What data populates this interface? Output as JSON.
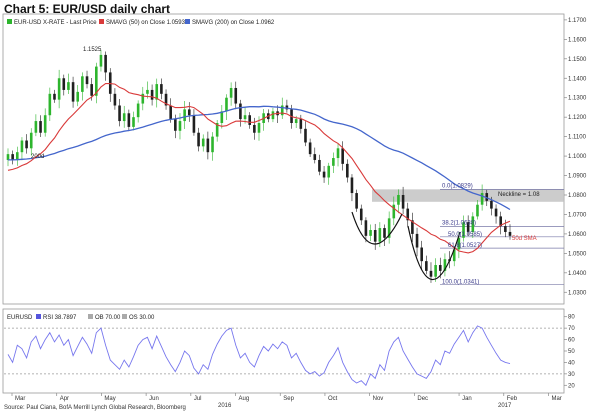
{
  "title": "Chart 5: EUR/USD daily chart",
  "source": "Source: Paul Ciana, BofA Merrill Lynch Global Research, Bloomberg",
  "colors": {
    "up": "#2db52d",
    "down": "#1f1f1f",
    "sma50": "#d93a3a",
    "sma200": "#4466cc",
    "rsi": "#7777ee",
    "neckline_band": "#bfbfbf"
  },
  "chart_data": [
    {
      "type": "candlestick",
      "legend": [
        {
          "label": "EUR-USD X-RATE - Last Price",
          "color": "#2db52d"
        },
        {
          "label": "SMAVG (50) on Close 1.0593",
          "color": "#d93a3a"
        },
        {
          "label": "SMAVG (200) on Close 1.0962",
          "color": "#4466cc"
        }
      ],
      "x_ticks": [
        "Mar",
        "Apr",
        "May",
        "Jun",
        "Jul",
        "Aug",
        "Sep",
        "Oct",
        "Nov",
        "Dec",
        "Jan",
        "Feb",
        "Mar"
      ],
      "year_labels": [
        "2016",
        "2017"
      ],
      "y_ticks": [
        "1.1700",
        "1.1600",
        "1.1500",
        "1.1400",
        "1.1300",
        "1.1200",
        "1.1100",
        "1.1000",
        "1.0900",
        "1.0800",
        "1.0700",
        "1.0600",
        "1.0500",
        "1.0400",
        "1.0300"
      ],
      "ylim": [
        1.025,
        1.172
      ],
      "closes": [
        1.101,
        1.098,
        1.102,
        1.108,
        1.104,
        1.112,
        1.118,
        1.112,
        1.121,
        1.132,
        1.129,
        1.14,
        1.134,
        1.138,
        1.128,
        1.133,
        1.141,
        1.137,
        1.131,
        1.146,
        1.152,
        1.143,
        1.132,
        1.126,
        1.118,
        1.122,
        1.115,
        1.12,
        1.127,
        1.132,
        1.134,
        1.129,
        1.137,
        1.132,
        1.126,
        1.119,
        1.113,
        1.118,
        1.124,
        1.121,
        1.112,
        1.105,
        1.109,
        1.102,
        1.11,
        1.117,
        1.123,
        1.13,
        1.135,
        1.127,
        1.119,
        1.121,
        1.116,
        1.112,
        1.117,
        1.122,
        1.119,
        1.123,
        1.121,
        1.126,
        1.124,
        1.117,
        1.119,
        1.114,
        1.107,
        1.101,
        1.098,
        1.092,
        1.089,
        1.095,
        1.099,
        1.104,
        1.096,
        1.089,
        1.081,
        1.073,
        1.067,
        1.059,
        1.062,
        1.056,
        1.063,
        1.058,
        1.068,
        1.075,
        1.08,
        1.073,
        1.067,
        1.06,
        1.053,
        1.046,
        1.041,
        1.038,
        1.044,
        1.041,
        1.047,
        1.046,
        1.052,
        1.058,
        1.066,
        1.061,
        1.069,
        1.075,
        1.081,
        1.077,
        1.073,
        1.069,
        1.064,
        1.061,
        1.059
      ],
      "labels": [
        {
          "text": "1.1525",
          "value": 1.1525
        },
        {
          "text": "200d"
        },
        {
          "text": "0.0(1.0829)",
          "value": 1.0829
        },
        {
          "text": "Neckline = 1.08",
          "value": 1.08
        },
        {
          "text": "38.2(1.0638)",
          "value": 1.0638
        },
        {
          "text": "50.0(1.0585)",
          "value": 1.0585
        },
        {
          "text": "61.8(1.0527)",
          "value": 1.0527
        },
        {
          "text": "50d SMA"
        },
        {
          "text": "100.0(1.0341)",
          "value": 1.0341
        }
      ]
    },
    {
      "type": "line",
      "legend": [
        {
          "label": "EURUSD"
        },
        {
          "label": "RSI 38.7897",
          "color": "#5555dd"
        },
        {
          "label": "OB 70.00",
          "color": "#aaaaaa"
        },
        {
          "label": "OS 30.00",
          "color": "#aaaaaa"
        }
      ],
      "y_ticks": [
        "80",
        "70",
        "60",
        "50",
        "40",
        "30",
        "20"
      ],
      "ylim": [
        15,
        85
      ],
      "overbought": 70,
      "oversold": 30,
      "values": [
        47,
        40,
        55,
        52,
        44,
        58,
        63,
        52,
        60,
        66,
        58,
        64,
        55,
        60,
        46,
        54,
        62,
        56,
        48,
        66,
        70,
        55,
        42,
        38,
        34,
        42,
        36,
        45,
        55,
        60,
        62,
        52,
        63,
        54,
        45,
        38,
        32,
        40,
        50,
        46,
        35,
        30,
        38,
        34,
        47,
        56,
        63,
        68,
        70,
        55,
        44,
        48,
        40,
        36,
        46,
        54,
        50,
        56,
        52,
        58,
        55,
        44,
        48,
        40,
        33,
        30,
        32,
        28,
        31,
        40,
        46,
        53,
        40,
        32,
        25,
        22,
        24,
        20,
        30,
        26,
        38,
        33,
        50,
        58,
        62,
        50,
        43,
        36,
        30,
        28,
        26,
        32,
        42,
        38,
        50,
        48,
        56,
        62,
        68,
        58,
        66,
        72,
        70,
        62,
        55,
        48,
        42,
        40,
        39
      ]
    }
  ]
}
